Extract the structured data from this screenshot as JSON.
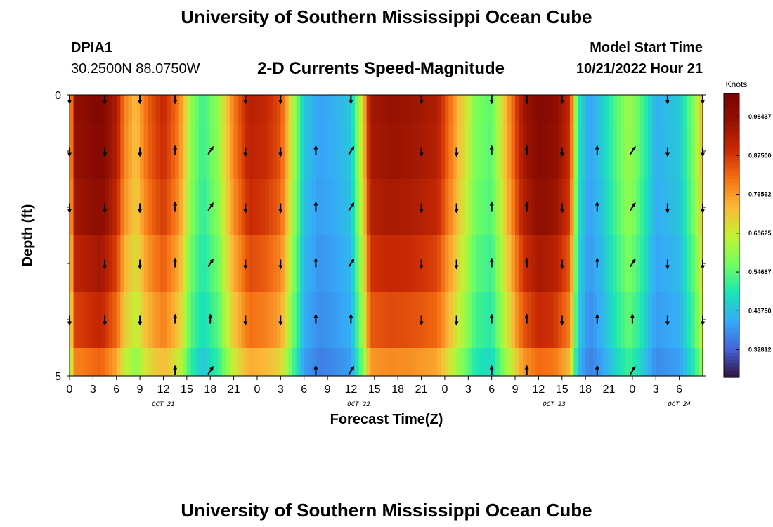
{
  "header": {
    "title": "University of Southern Mississippi Ocean Cube",
    "station": "DPIA1",
    "coords": "30.2500N  88.0750W",
    "subtitle": "2-D Currents Speed-Magnitude",
    "model_start_label": "Model Start Time",
    "model_start_value": "10/21/2022 Hour 21"
  },
  "footer": {
    "title": "University of Southern Mississippi Ocean Cube"
  },
  "chart_data": {
    "type": "heatmap",
    "title": "2-D Currents Speed-Magnitude",
    "xlabel": "Forecast Time(Z)",
    "ylabel": "Depth (ft)",
    "colorbar_label": "Knots",
    "colorbar_ticks": [
      "0.98437",
      "0.87500",
      "0.76562",
      "0.65625",
      "0.54687",
      "0.43750",
      "0.32812"
    ],
    "colorbar_values": [
      0.98437,
      0.875,
      0.76562,
      0.65625,
      0.54687,
      0.4375,
      0.32812
    ],
    "value_range": [
      0.25,
      1.05
    ],
    "y_ticks": [
      "0",
      "5"
    ],
    "ylim": [
      0,
      5
    ],
    "xlim": [
      0,
      81
    ],
    "x_ticks": [
      {
        "h": 0,
        "label": "0"
      },
      {
        "h": 3,
        "label": "3"
      },
      {
        "h": 6,
        "label": "6"
      },
      {
        "h": 9,
        "label": "9"
      },
      {
        "h": 12,
        "label": "12"
      },
      {
        "h": 15,
        "label": "15"
      },
      {
        "h": 18,
        "label": "18"
      },
      {
        "h": 21,
        "label": "21"
      },
      {
        "h": 24,
        "label": "0"
      },
      {
        "h": 27,
        "label": "3"
      },
      {
        "h": 30,
        "label": "6"
      },
      {
        "h": 33,
        "label": "9"
      },
      {
        "h": 36,
        "label": "12"
      },
      {
        "h": 39,
        "label": "15"
      },
      {
        "h": 42,
        "label": "18"
      },
      {
        "h": 45,
        "label": "21"
      },
      {
        "h": 48,
        "label": "0"
      },
      {
        "h": 51,
        "label": "3"
      },
      {
        "h": 54,
        "label": "6"
      },
      {
        "h": 57,
        "label": "9"
      },
      {
        "h": 60,
        "label": "12"
      },
      {
        "h": 63,
        "label": "15"
      },
      {
        "h": 66,
        "label": "18"
      },
      {
        "h": 69,
        "label": "21"
      },
      {
        "h": 72,
        "label": "0"
      },
      {
        "h": 75,
        "label": "3"
      },
      {
        "h": 78,
        "label": "6"
      }
    ],
    "date_labels": [
      {
        "h": 12,
        "label": "OCT 21"
      },
      {
        "h": 37,
        "label": "OCT 22"
      },
      {
        "h": 62,
        "label": "OCT 23"
      },
      {
        "h": 78,
        "label": "OCT 24"
      }
    ],
    "depths": [
      0,
      1,
      2,
      3,
      4,
      5
    ],
    "surface_profile": [
      {
        "h": 0,
        "v": 0.7
      },
      {
        "h": 0.6,
        "v": 0.98
      },
      {
        "h": 2,
        "v": 1.0
      },
      {
        "h": 4,
        "v": 1.03
      },
      {
        "h": 6,
        "v": 0.93
      },
      {
        "h": 7,
        "v": 0.8
      },
      {
        "h": 8.5,
        "v": 0.72
      },
      {
        "h": 10,
        "v": 0.83
      },
      {
        "h": 12,
        "v": 0.9
      },
      {
        "h": 14,
        "v": 0.8
      },
      {
        "h": 15.5,
        "v": 0.6
      },
      {
        "h": 17,
        "v": 0.52
      },
      {
        "h": 19,
        "v": 0.6
      },
      {
        "h": 21,
        "v": 0.8
      },
      {
        "h": 23,
        "v": 0.92
      },
      {
        "h": 25,
        "v": 0.9
      },
      {
        "h": 27,
        "v": 0.85
      },
      {
        "h": 28.5,
        "v": 0.65
      },
      {
        "h": 30,
        "v": 0.45
      },
      {
        "h": 32,
        "v": 0.4
      },
      {
        "h": 34,
        "v": 0.42
      },
      {
        "h": 36,
        "v": 0.45
      },
      {
        "h": 37.5,
        "v": 0.7
      },
      {
        "h": 38.5,
        "v": 0.95
      },
      {
        "h": 41,
        "v": 0.97
      },
      {
        "h": 44,
        "v": 0.96
      },
      {
        "h": 47,
        "v": 0.93
      },
      {
        "h": 49.5,
        "v": 0.75
      },
      {
        "h": 52,
        "v": 0.58
      },
      {
        "h": 54,
        "v": 0.55
      },
      {
        "h": 56,
        "v": 0.75
      },
      {
        "h": 58,
        "v": 0.95
      },
      {
        "h": 60,
        "v": 1.02
      },
      {
        "h": 62,
        "v": 1.0
      },
      {
        "h": 64,
        "v": 0.9
      },
      {
        "h": 65,
        "v": 0.5
      },
      {
        "h": 66.5,
        "v": 0.4
      },
      {
        "h": 68,
        "v": 0.45
      },
      {
        "h": 70,
        "v": 0.55
      },
      {
        "h": 71.5,
        "v": 0.62
      },
      {
        "h": 73,
        "v": 0.55
      },
      {
        "h": 75,
        "v": 0.42
      },
      {
        "h": 78,
        "v": 0.45
      },
      {
        "h": 80,
        "v": 0.6
      },
      {
        "h": 81,
        "v": 0.75
      }
    ],
    "depth_scale": [
      1.0,
      0.99,
      0.96,
      0.9,
      0.84,
      0.74
    ],
    "arrow_hours": [
      0,
      4.5,
      9,
      13.5,
      18,
      22.5,
      27,
      31.5,
      36,
      40.5,
      45,
      49.5,
      54,
      58.5,
      63,
      67.5,
      72,
      76.5,
      81
    ],
    "arrow_rows": [
      [
        "down",
        "down",
        "down",
        "down",
        "",
        "down",
        "down",
        "",
        "down",
        "",
        "down",
        "",
        "down",
        "down",
        "down",
        "",
        "",
        "down",
        "down"
      ],
      [
        "down",
        "down",
        "down",
        "up",
        "up-right",
        "down",
        "down",
        "up",
        "up-right",
        "",
        "down",
        "down",
        "up",
        "up",
        "down",
        "up",
        "up-right",
        "down",
        "down"
      ],
      [
        "down",
        "down",
        "down",
        "up",
        "up-right",
        "down",
        "down",
        "up",
        "up-right",
        "",
        "down",
        "down",
        "up",
        "up",
        "down",
        "up",
        "up-right",
        "down",
        "down"
      ],
      [
        "",
        "down",
        "down",
        "up",
        "up-right",
        "down",
        "down",
        "up",
        "up-right",
        "",
        "down",
        "down",
        "up",
        "up",
        "down",
        "up",
        "up-right",
        "down",
        "down"
      ],
      [
        "down",
        "down",
        "down",
        "up",
        "up",
        "down",
        "down",
        "up",
        "up",
        "",
        "down",
        "down",
        "up",
        "up",
        "down",
        "up",
        "up",
        "down",
        "down"
      ],
      [
        "",
        "",
        "",
        "up",
        "up-right",
        "",
        "",
        "up",
        "up-right",
        "",
        "",
        "",
        "up",
        "up",
        "",
        "up",
        "up-right",
        "",
        ""
      ]
    ]
  }
}
